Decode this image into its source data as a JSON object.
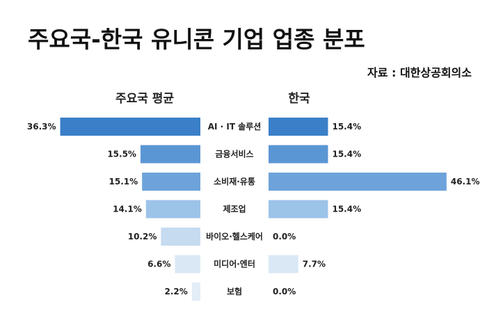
{
  "title": "주요국-한국 유니콘 기업 업종 분포",
  "source": "자료 : 대한상공회의소",
  "chart_data": {
    "type": "bar",
    "orientation": "horizontal-butterfly",
    "categories": [
      "AI · IT 솔루션",
      "금융서비스",
      "소비재·유통",
      "제조업",
      "바이오·헬스케어",
      "미디어·엔터",
      "보험"
    ],
    "series": [
      {
        "name": "주요국 평균",
        "values": [
          36.3,
          15.5,
          15.1,
          14.1,
          10.2,
          6.6,
          2.2
        ],
        "labels": [
          "36.3%",
          "15.5%",
          "15.1%",
          "14.1%",
          "10.2%",
          "6.6%",
          "2.2%"
        ]
      },
      {
        "name": "한국",
        "values": [
          15.4,
          15.4,
          46.1,
          15.4,
          0.0,
          7.7,
          0.0
        ],
        "labels": [
          "15.4%",
          "15.4%",
          "46.1%",
          "15.4%",
          "0.0%",
          "7.7%",
          "0.0%"
        ]
      }
    ],
    "bar_colors": [
      "#3a7fc8",
      "#5b96d4",
      "#6da3da",
      "#9cc3e8",
      "#c6dbf0",
      "#dae8f5",
      "#e2edf7"
    ]
  }
}
